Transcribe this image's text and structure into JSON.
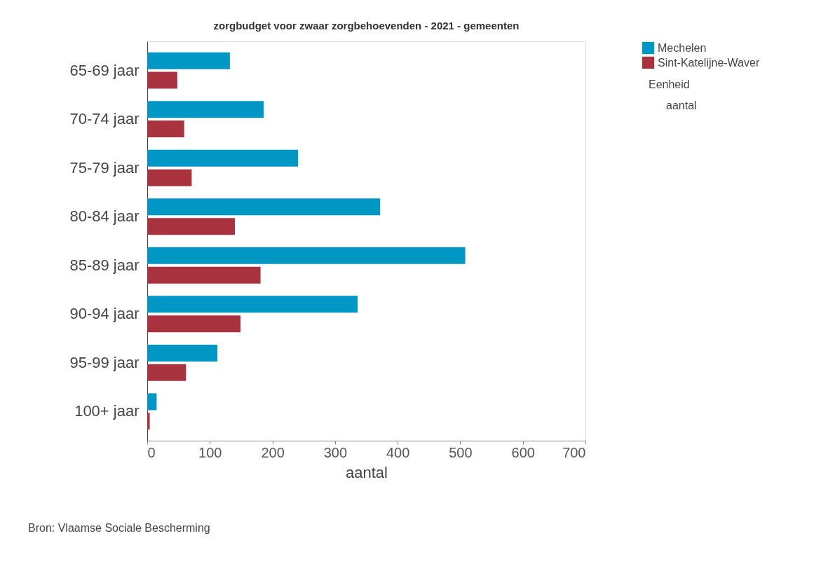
{
  "chart_data": {
    "type": "bar",
    "orientation": "horizontal",
    "title": "zorgbudget voor zwaar zorgbehoevenden - 2021 - gemeenten",
    "xlabel": "aantal",
    "categories": [
      "65-69 jaar",
      "70-74 jaar",
      "75-79 jaar",
      "80-84 jaar",
      "85-89 jaar",
      "90-94 jaar",
      "95-99 jaar",
      "100+ jaar"
    ],
    "series": [
      {
        "name": "Mechelen",
        "color": "#0097c4",
        "values": [
          132,
          186,
          241,
          372,
          508,
          336,
          112,
          15
        ]
      },
      {
        "name": "Sint-Katelijne-Waver",
        "color": "#a8323e",
        "values": [
          48,
          59,
          71,
          140,
          181,
          149,
          62,
          4
        ]
      }
    ],
    "xlim": [
      0,
      700
    ],
    "xticks": [
      0,
      100,
      200,
      300,
      400,
      500,
      600,
      700
    ],
    "grid": false,
    "legend": "top right",
    "annotations": [
      "Eenheid",
      "aantal",
      "Bron: Vlaamse Sociale Bescherming"
    ]
  }
}
